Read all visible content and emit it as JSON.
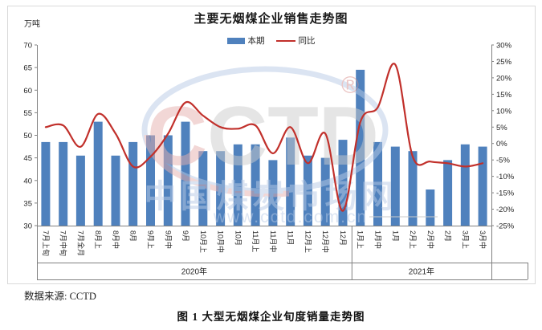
{
  "chart": {
    "title": "主要无烟煤企业销售走势图",
    "unit_label": "万吨",
    "legend": {
      "bars": "本期",
      "line": "同比"
    }
  },
  "chart_data": {
    "type": "bar",
    "combo": "bar+line",
    "title": "主要无烟煤企业销售走势图",
    "categories": [
      "7月上旬",
      "7月中旬",
      "7月全月",
      "8月上",
      "8月中",
      "8月",
      "9月上",
      "9月中",
      "9月",
      "10月上",
      "10月中",
      "10月",
      "11月上",
      "11月中",
      "11月",
      "12月上",
      "12月中",
      "12月",
      "1月上",
      "1月中",
      "1月",
      "2月上",
      "2月中",
      "2月",
      "3月上",
      "3月中"
    ],
    "series": [
      {
        "name": "本期",
        "type": "bar",
        "axis": "left",
        "unit": "万吨",
        "values": [
          48.5,
          48.5,
          45.5,
          53,
          45.5,
          48.5,
          50,
          50,
          53,
          46.5,
          46.5,
          48,
          48,
          44.5,
          49.5,
          45.5,
          45,
          49,
          64.5,
          48.5,
          47.5,
          46.5,
          38,
          44.5,
          48,
          47.5
        ]
      },
      {
        "name": "同比",
        "type": "line",
        "axis": "right",
        "unit": "%",
        "values": [
          5,
          5.5,
          -1,
          9,
          3,
          -7,
          -4,
          3,
          12.5,
          8.5,
          5,
          4.5,
          5.5,
          -3,
          5,
          -6,
          3,
          -20.5,
          6.5,
          11,
          24,
          -4,
          -5.5,
          -6,
          -7,
          -6
        ]
      }
    ],
    "left_axis": {
      "title": "万吨",
      "min": 30,
      "max": 70,
      "step": 5,
      "ticks": [
        "70",
        "65",
        "60",
        "55",
        "50",
        "45",
        "40",
        "35",
        "30"
      ]
    },
    "right_axis": {
      "min": -25,
      "max": 30,
      "step": 5,
      "ticks": [
        "30%",
        "25%",
        "20%",
        "15%",
        "10%",
        "5%",
        "0%",
        "-5%",
        "-10%",
        "-15%",
        "-20%",
        "-25%"
      ]
    },
    "year_groups": [
      {
        "label": "2020年",
        "start": 0,
        "end": 17
      },
      {
        "label": "2021年",
        "start": 18,
        "end": 25
      }
    ],
    "grid": false,
    "legend_position": "top",
    "colors": {
      "bar": "#4f81bd",
      "line": "#c1302b",
      "axis": "#808080",
      "tick_text": "#262626",
      "watermark_blue": "#b9cbe6",
      "watermark_pink": "#e7b0ae",
      "watermark_gray": "#cccccc",
      "watermark_red": "#d98f8c"
    }
  },
  "watermark": {
    "brand_first": "C",
    "brand_rest": "CTD",
    "registered": "®",
    "site_name": "中国煤炭市场网",
    "site_url": "www.cctd.com.cn"
  },
  "footer": {
    "source": "数据来源: CCTD",
    "caption": "图 1 大型无烟煤企业旬度销量走势图"
  }
}
